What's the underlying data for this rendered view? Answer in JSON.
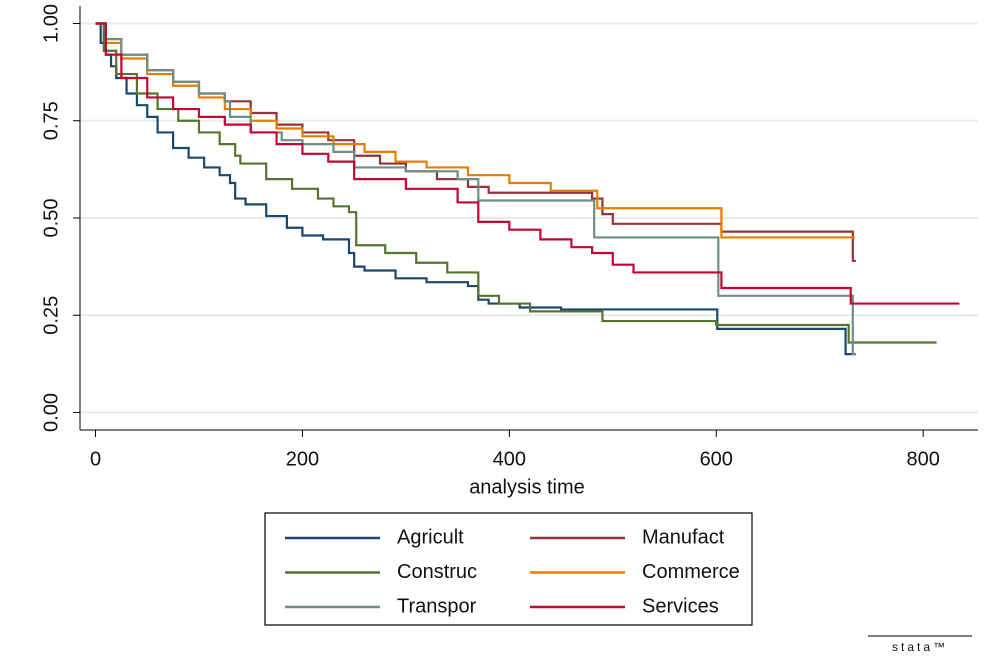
{
  "chart_data": {
    "type": "step",
    "step": "post",
    "xlabel": "analysis time",
    "xlim": [
      -15,
      853
    ],
    "xticks": [
      0,
      200,
      400,
      600,
      800
    ],
    "ylim": [
      -0.045,
      1.045
    ],
    "yticks": [
      {
        "value": 0,
        "label": "0.00"
      },
      {
        "value": 0.25,
        "label": "0.25"
      },
      {
        "value": 0.5,
        "label": "0.50"
      },
      {
        "value": 0.75,
        "label": "0.75"
      },
      {
        "value": 1,
        "label": "1.00"
      }
    ],
    "grid": true,
    "legend": "bottom",
    "legend_columns": 2,
    "watermark": "stata™",
    "series": [
      {
        "name": "Agricult",
        "color": "#1a476f",
        "x": [
          0,
          5,
          10,
          15,
          20,
          30,
          40,
          50,
          60,
          75,
          90,
          105,
          120,
          130,
          135,
          145,
          165,
          185,
          200,
          220,
          245,
          250,
          260,
          290,
          320,
          360,
          370,
          380,
          410,
          450,
          601,
          725,
          735
        ],
        "values": [
          1,
          0.95,
          0.92,
          0.89,
          0.86,
          0.82,
          0.79,
          0.76,
          0.72,
          0.68,
          0.655,
          0.63,
          0.61,
          0.59,
          0.55,
          0.535,
          0.505,
          0.475,
          0.455,
          0.445,
          0.41,
          0.375,
          0.365,
          0.345,
          0.335,
          0.325,
          0.29,
          0.28,
          0.27,
          0.265,
          0.215,
          0.15,
          0.15
        ]
      },
      {
        "name": "Manufact",
        "color": "#90353b",
        "x": [
          0,
          10,
          25,
          50,
          75,
          100,
          125,
          150,
          175,
          200,
          225,
          250,
          275,
          300,
          330,
          360,
          380,
          480,
          490,
          500,
          605,
          732,
          735
        ],
        "values": [
          1,
          0.96,
          0.92,
          0.88,
          0.85,
          0.82,
          0.8,
          0.77,
          0.74,
          0.72,
          0.7,
          0.66,
          0.64,
          0.62,
          0.6,
          0.58,
          0.565,
          0.55,
          0.51,
          0.485,
          0.465,
          0.39,
          0.39
        ]
      },
      {
        "name": "Construc",
        "color": "#55752f",
        "x": [
          0,
          8,
          20,
          40,
          60,
          80,
          100,
          120,
          135,
          140,
          165,
          190,
          215,
          230,
          245,
          252,
          280,
          310,
          340,
          370,
          390,
          420,
          490,
          600,
          728,
          813
        ],
        "values": [
          1,
          0.93,
          0.87,
          0.82,
          0.78,
          0.75,
          0.72,
          0.69,
          0.66,
          0.64,
          0.6,
          0.575,
          0.55,
          0.53,
          0.515,
          0.43,
          0.41,
          0.385,
          0.36,
          0.3,
          0.28,
          0.26,
          0.235,
          0.225,
          0.18,
          0.18
        ]
      },
      {
        "name": "Commerce",
        "color": "#e37e00",
        "x": [
          0,
          10,
          25,
          50,
          75,
          100,
          125,
          150,
          175,
          200,
          230,
          260,
          290,
          320,
          360,
          400,
          440,
          485,
          605,
          734
        ],
        "values": [
          1,
          0.95,
          0.91,
          0.87,
          0.84,
          0.81,
          0.78,
          0.75,
          0.73,
          0.71,
          0.69,
          0.67,
          0.645,
          0.63,
          0.61,
          0.59,
          0.57,
          0.525,
          0.45,
          0.45
        ]
      },
      {
        "name": "Transpor",
        "color": "#6e8e84",
        "x": [
          0,
          10,
          25,
          50,
          75,
          100,
          125,
          130,
          150,
          180,
          200,
          230,
          250,
          300,
          350,
          370,
          482,
          602,
          732,
          735
        ],
        "values": [
          1,
          0.96,
          0.92,
          0.88,
          0.85,
          0.82,
          0.8,
          0.76,
          0.72,
          0.7,
          0.69,
          0.67,
          0.63,
          0.62,
          0.6,
          0.545,
          0.45,
          0.3,
          0.15,
          0.15
        ]
      },
      {
        "name": "Services",
        "color": "#c10534",
        "x": [
          0,
          10,
          25,
          50,
          75,
          100,
          125,
          150,
          175,
          200,
          225,
          250,
          300,
          350,
          370,
          400,
          430,
          460,
          480,
          500,
          520,
          605,
          730,
          835
        ],
        "values": [
          1,
          0.92,
          0.86,
          0.81,
          0.78,
          0.76,
          0.74,
          0.72,
          0.69,
          0.665,
          0.645,
          0.6,
          0.575,
          0.54,
          0.49,
          0.47,
          0.445,
          0.425,
          0.41,
          0.38,
          0.36,
          0.32,
          0.28,
          0.28
        ]
      }
    ]
  }
}
